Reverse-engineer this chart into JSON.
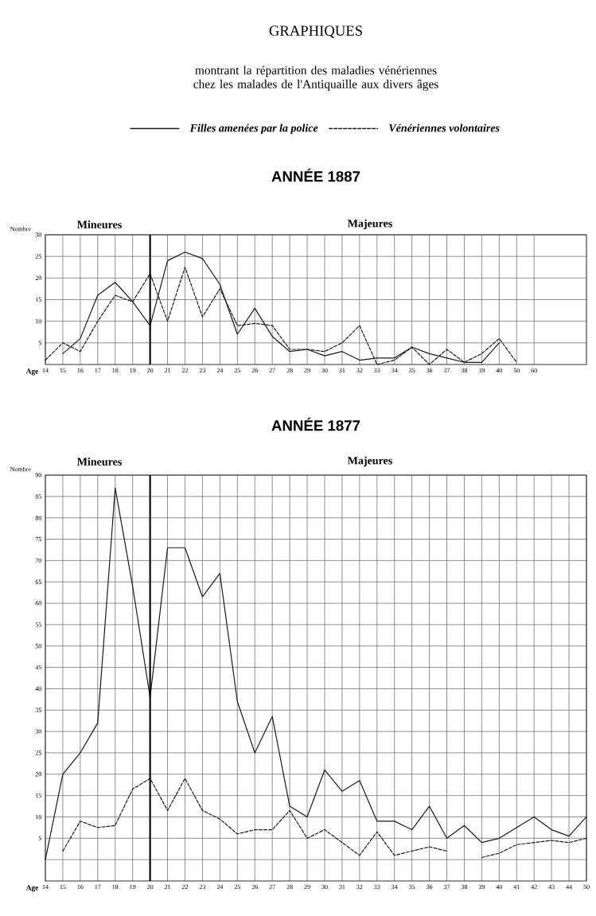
{
  "chart_data": [
    {
      "type": "line",
      "title": "GRAPHIQUES",
      "subtitle": "montrant la répartition des maladies vénériennes chez les malades de l'Antiquaille aux divers âges",
      "annotations": [
        "ANNÉE 1887",
        "Mineures",
        "Majeures"
      ],
      "xlabel": "Age",
      "ylabel": "Nombre",
      "categories": [
        "14",
        "15",
        "16",
        "17",
        "18",
        "19",
        "20",
        "21",
        "22",
        "23",
        "24",
        "25",
        "26",
        "27",
        "28",
        "29",
        "30",
        "31",
        "32",
        "33",
        "34",
        "35",
        "36",
        "37",
        "38",
        "39",
        "40",
        "50",
        "60"
      ],
      "series": [
        {
          "name": "Filles amenées par la police",
          "color": "#1a1a1a",
          "line_style": "solid",
          "values": [
            null,
            2.5,
            6,
            16,
            19,
            14.5,
            9,
            24,
            26,
            24.5,
            18.5,
            7,
            13,
            6.5,
            3,
            3.5,
            2,
            3,
            1,
            1.5,
            1.5,
            4,
            2.5,
            1.5,
            0.5,
            0.5,
            5,
            null,
            null
          ]
        },
        {
          "name": "Vénériennes volontaires",
          "color": "#1a1a1a",
          "line_style": "dashed",
          "values": [
            1,
            5,
            3,
            10,
            16,
            14.5,
            21,
            10,
            22.5,
            11,
            17.5,
            9,
            9.5,
            9,
            3.5,
            3.5,
            3,
            5,
            9,
            0,
            1,
            4,
            0,
            3.5,
            0.5,
            2.5,
            6,
            0.5,
            null
          ]
        }
      ],
      "ylim": [
        0,
        30
      ],
      "yticks": [
        5,
        10,
        15,
        20,
        25,
        30
      ],
      "ref_lines": [
        {
          "axis": "x",
          "value": "20"
        }
      ],
      "grid": true,
      "legend": "top",
      "marker": "none"
    },
    {
      "type": "line",
      "title": "ANNÉE 1877",
      "annotations": [
        "Mineures",
        "Majeures"
      ],
      "xlabel": "Age",
      "ylabel": "Nombre",
      "categories": [
        "14",
        "15",
        "16",
        "17",
        "18",
        "19",
        "20",
        "21",
        "22",
        "23",
        "24",
        "25",
        "26",
        "27",
        "28",
        "29",
        "30",
        "31",
        "32",
        "33",
        "34",
        "35",
        "36",
        "37",
        "38",
        "39",
        "40",
        "41",
        "42",
        "43",
        "44",
        "50"
      ],
      "series": [
        {
          "color": "#1a1a1a",
          "line_style": "solid",
          "values": [
            0,
            20,
            25,
            32,
            87,
            64,
            38,
            73,
            73,
            61.5,
            67,
            37,
            25,
            33.5,
            12.5,
            10,
            21,
            16,
            18.5,
            9,
            9,
            7,
            12.5,
            5,
            8,
            4,
            5,
            7.5,
            10,
            7,
            5.5,
            10
          ]
        },
        {
          "color": "#1a1a1a",
          "line_style": "dashed",
          "values": [
            null,
            2,
            9,
            7.5,
            8,
            16.5,
            19,
            11.5,
            19,
            11.5,
            9.5,
            6,
            7,
            7,
            11.5,
            5,
            7,
            4,
            1,
            6.5,
            1,
            2,
            3,
            2,
            null,
            0.5,
            1.5,
            3.5,
            4,
            4.5,
            4,
            5
          ]
        }
      ],
      "ylim": [
        -5,
        90
      ],
      "yticks": [
        {
          "value": 0,
          "label": null
        },
        5,
        10,
        15,
        20,
        25,
        30,
        35,
        40,
        45,
        50,
        55,
        60,
        65,
        70,
        75,
        80,
        85,
        90
      ],
      "ref_lines": [
        {
          "axis": "x",
          "value": "20"
        }
      ],
      "grid": true,
      "legend": false,
      "marker": "none"
    }
  ]
}
